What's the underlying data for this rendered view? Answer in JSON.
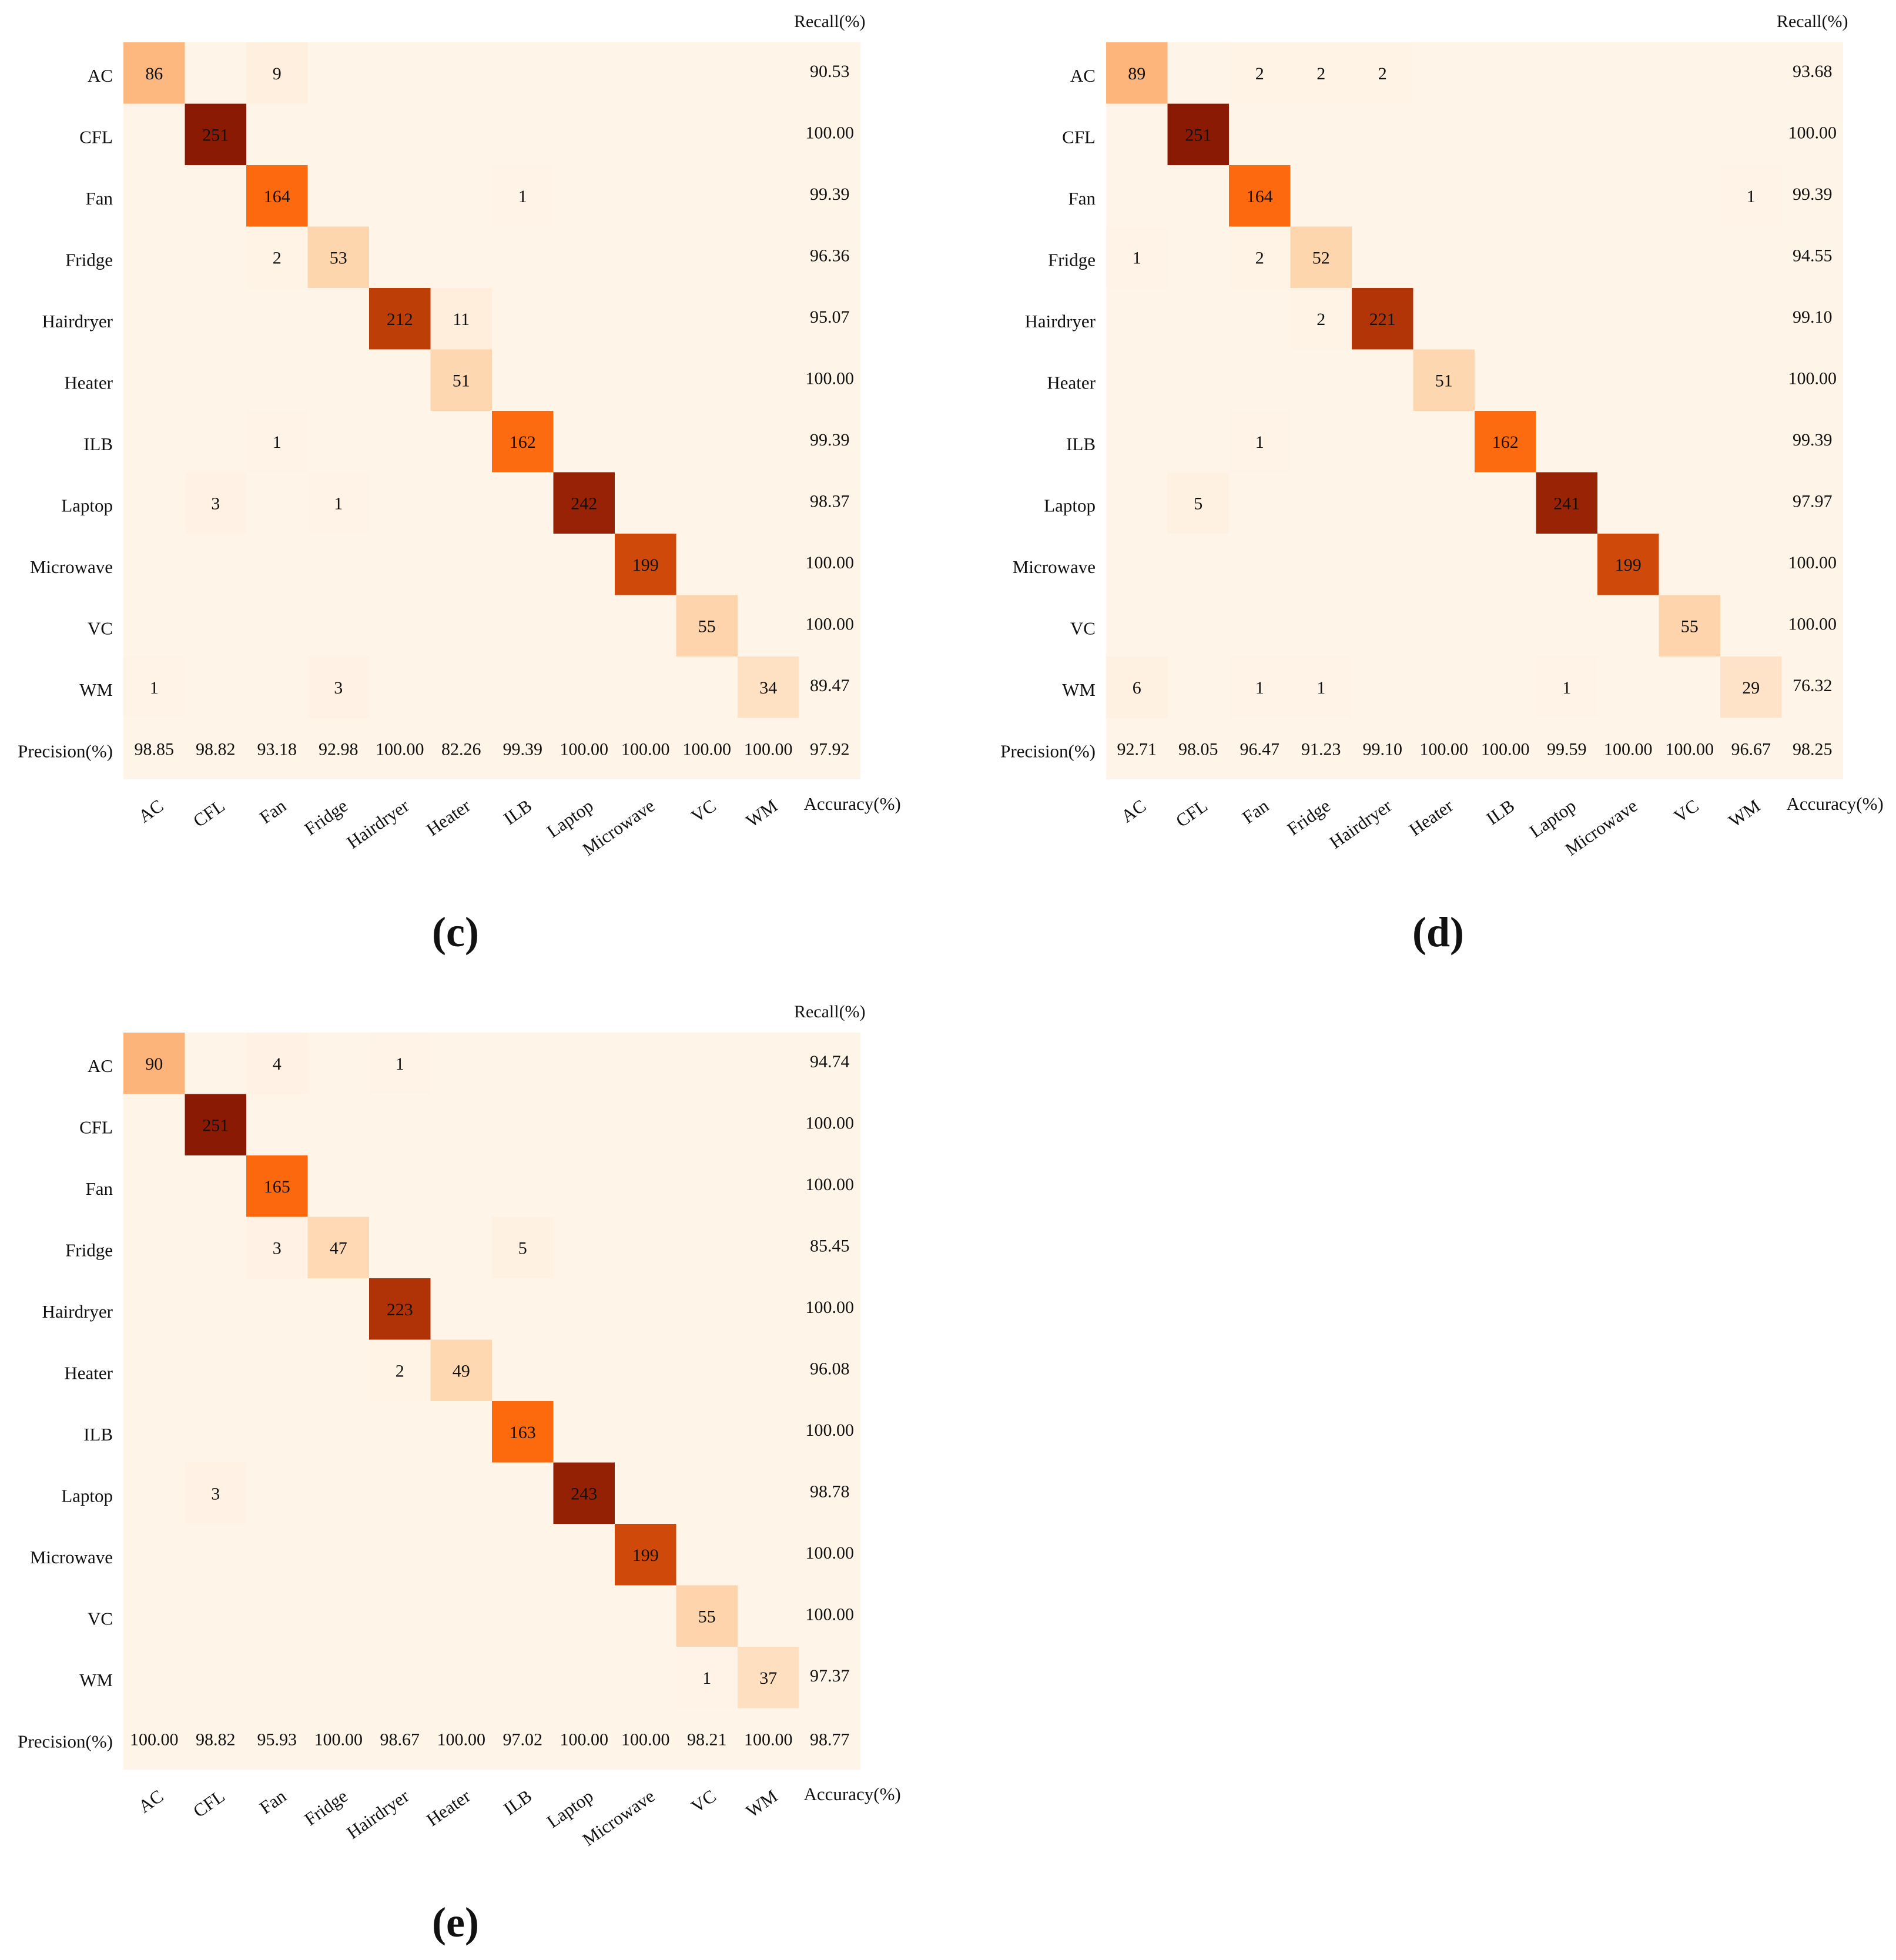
{
  "figure": {
    "cell_color_low": "#fff4e8",
    "cell_color_mid": "#fd6a0e",
    "cell_color_high": "#8b1a04",
    "font_color": "#111111"
  },
  "chart_data": [
    {
      "type": "heatmap",
      "panel_label": "(c)",
      "rows": [
        "AC",
        "CFL",
        "Fan",
        "Fridge",
        "Hairdryer",
        "Heater",
        "ILB",
        "Laptop",
        "Microwave",
        "VC",
        "WM"
      ],
      "columns": [
        "AC",
        "CFL",
        "Fan",
        "Fridge",
        "Hairdryer",
        "Heater",
        "ILB",
        "Laptop",
        "Microwave",
        "VC",
        "WM"
      ],
      "matrix": [
        [
          86,
          0,
          9,
          0,
          0,
          0,
          0,
          0,
          0,
          0,
          0
        ],
        [
          0,
          251,
          0,
          0,
          0,
          0,
          0,
          0,
          0,
          0,
          0
        ],
        [
          0,
          0,
          164,
          0,
          0,
          0,
          1,
          0,
          0,
          0,
          0
        ],
        [
          0,
          0,
          2,
          53,
          0,
          0,
          0,
          0,
          0,
          0,
          0
        ],
        [
          0,
          0,
          0,
          0,
          212,
          11,
          0,
          0,
          0,
          0,
          0
        ],
        [
          0,
          0,
          0,
          0,
          0,
          51,
          0,
          0,
          0,
          0,
          0
        ],
        [
          0,
          0,
          1,
          0,
          0,
          0,
          162,
          0,
          0,
          0,
          0
        ],
        [
          0,
          3,
          0,
          1,
          0,
          0,
          0,
          242,
          0,
          0,
          0
        ],
        [
          0,
          0,
          0,
          0,
          0,
          0,
          0,
          0,
          199,
          0,
          0
        ],
        [
          0,
          0,
          0,
          0,
          0,
          0,
          0,
          0,
          0,
          55,
          0
        ],
        [
          1,
          0,
          0,
          3,
          0,
          0,
          0,
          0,
          0,
          0,
          34
        ]
      ],
      "recall_header": "Recall(%)",
      "recall": [
        "90.53",
        "100.00",
        "99.39",
        "96.36",
        "95.07",
        "100.00",
        "99.39",
        "98.37",
        "100.00",
        "100.00",
        "89.47"
      ],
      "precision_label": "Precision(%)",
      "precision": [
        "98.85",
        "98.82",
        "93.18",
        "92.98",
        "100.00",
        "82.26",
        "99.39",
        "100.00",
        "100.00",
        "100.00",
        "100.00"
      ],
      "accuracy_label": "Accuracy(%)",
      "accuracy": "97.92"
    },
    {
      "type": "heatmap",
      "panel_label": "(d)",
      "rows": [
        "AC",
        "CFL",
        "Fan",
        "Fridge",
        "Hairdryer",
        "Heater",
        "ILB",
        "Laptop",
        "Microwave",
        "VC",
        "WM"
      ],
      "columns": [
        "AC",
        "CFL",
        "Fan",
        "Fridge",
        "Hairdryer",
        "Heater",
        "ILB",
        "Laptop",
        "Microwave",
        "VC",
        "WM"
      ],
      "matrix": [
        [
          89,
          0,
          2,
          2,
          2,
          0,
          0,
          0,
          0,
          0,
          0
        ],
        [
          0,
          251,
          0,
          0,
          0,
          0,
          0,
          0,
          0,
          0,
          0
        ],
        [
          0,
          0,
          164,
          0,
          0,
          0,
          0,
          0,
          0,
          0,
          1
        ],
        [
          1,
          0,
          2,
          52,
          0,
          0,
          0,
          0,
          0,
          0,
          0
        ],
        [
          0,
          0,
          0,
          2,
          221,
          0,
          0,
          0,
          0,
          0,
          0
        ],
        [
          0,
          0,
          0,
          0,
          0,
          51,
          0,
          0,
          0,
          0,
          0
        ],
        [
          0,
          0,
          1,
          0,
          0,
          0,
          162,
          0,
          0,
          0,
          0
        ],
        [
          0,
          5,
          0,
          0,
          0,
          0,
          0,
          241,
          0,
          0,
          0
        ],
        [
          0,
          0,
          0,
          0,
          0,
          0,
          0,
          0,
          199,
          0,
          0
        ],
        [
          0,
          0,
          0,
          0,
          0,
          0,
          0,
          0,
          0,
          55,
          0
        ],
        [
          6,
          0,
          1,
          1,
          0,
          0,
          0,
          1,
          0,
          0,
          29
        ]
      ],
      "recall_header": "Recall(%)",
      "recall": [
        "93.68",
        "100.00",
        "99.39",
        "94.55",
        "99.10",
        "100.00",
        "99.39",
        "97.97",
        "100.00",
        "100.00",
        "76.32"
      ],
      "precision_label": "Precision(%)",
      "precision": [
        "92.71",
        "98.05",
        "96.47",
        "91.23",
        "99.10",
        "100.00",
        "100.00",
        "99.59",
        "100.00",
        "100.00",
        "96.67"
      ],
      "accuracy_label": "Accuracy(%)",
      "accuracy": "98.25"
    },
    {
      "type": "heatmap",
      "panel_label": "(e)",
      "rows": [
        "AC",
        "CFL",
        "Fan",
        "Fridge",
        "Hairdryer",
        "Heater",
        "ILB",
        "Laptop",
        "Microwave",
        "VC",
        "WM"
      ],
      "columns": [
        "AC",
        "CFL",
        "Fan",
        "Fridge",
        "Hairdryer",
        "Heater",
        "ILB",
        "Laptop",
        "Microwave",
        "VC",
        "WM"
      ],
      "matrix": [
        [
          90,
          0,
          4,
          0,
          1,
          0,
          0,
          0,
          0,
          0,
          0
        ],
        [
          0,
          251,
          0,
          0,
          0,
          0,
          0,
          0,
          0,
          0,
          0
        ],
        [
          0,
          0,
          165,
          0,
          0,
          0,
          0,
          0,
          0,
          0,
          0
        ],
        [
          0,
          0,
          3,
          47,
          0,
          0,
          5,
          0,
          0,
          0,
          0
        ],
        [
          0,
          0,
          0,
          0,
          223,
          0,
          0,
          0,
          0,
          0,
          0
        ],
        [
          0,
          0,
          0,
          0,
          2,
          49,
          0,
          0,
          0,
          0,
          0
        ],
        [
          0,
          0,
          0,
          0,
          0,
          0,
          163,
          0,
          0,
          0,
          0
        ],
        [
          0,
          3,
          0,
          0,
          0,
          0,
          0,
          243,
          0,
          0,
          0
        ],
        [
          0,
          0,
          0,
          0,
          0,
          0,
          0,
          0,
          199,
          0,
          0
        ],
        [
          0,
          0,
          0,
          0,
          0,
          0,
          0,
          0,
          0,
          55,
          0
        ],
        [
          0,
          0,
          0,
          0,
          0,
          0,
          0,
          0,
          0,
          1,
          37
        ]
      ],
      "recall_header": "Recall(%)",
      "recall": [
        "94.74",
        "100.00",
        "100.00",
        "85.45",
        "100.00",
        "96.08",
        "100.00",
        "98.78",
        "100.00",
        "100.00",
        "97.37"
      ],
      "precision_label": "Precision(%)",
      "precision": [
        "100.00",
        "98.82",
        "95.93",
        "100.00",
        "98.67",
        "100.00",
        "97.02",
        "100.00",
        "100.00",
        "98.21",
        "100.00"
      ],
      "accuracy_label": "Accuracy(%)",
      "accuracy": "98.77"
    }
  ]
}
